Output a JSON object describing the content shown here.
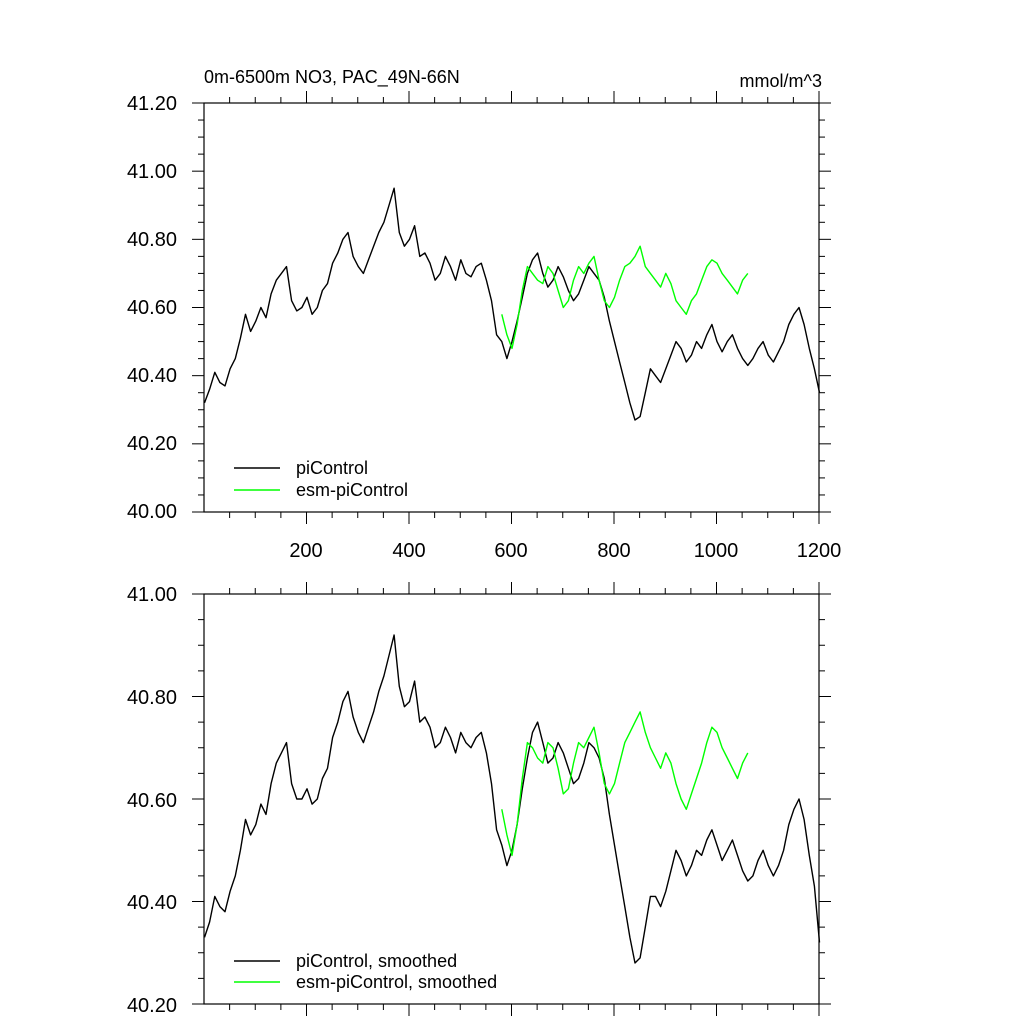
{
  "chart_data": [
    {
      "type": "line",
      "title": "0m-6500m NO3, PAC_49N-66N",
      "units": "mmol/m^3",
      "xlim": [
        0,
        1200
      ],
      "ylim": [
        40.0,
        41.2
      ],
      "xticks": [
        200,
        400,
        600,
        800,
        1000,
        1200
      ],
      "xtick_labels": [
        "200",
        "400",
        "600",
        "800",
        "1000",
        "1200"
      ],
      "yticks": [
        40.0,
        40.2,
        40.4,
        40.6,
        40.8,
        41.0,
        41.2
      ],
      "ytick_labels": [
        "40.00",
        "40.20",
        "40.40",
        "40.60",
        "40.80",
        "41.00",
        "41.20"
      ],
      "legend": {
        "position": "bottom-left",
        "entries": [
          "piControl",
          "esm-piControl"
        ]
      },
      "series": [
        {
          "name": "piControl",
          "color": "#000000",
          "x_start": 1,
          "x_step": 10,
          "values": [
            40.32,
            40.36,
            40.41,
            40.38,
            40.37,
            40.42,
            40.45,
            40.51,
            40.58,
            40.53,
            40.56,
            40.6,
            40.57,
            40.64,
            40.68,
            40.7,
            40.72,
            40.62,
            40.59,
            40.6,
            40.63,
            40.58,
            40.6,
            40.65,
            40.67,
            40.73,
            40.76,
            40.8,
            40.82,
            40.75,
            40.72,
            40.7,
            40.74,
            40.78,
            40.82,
            40.85,
            40.9,
            40.95,
            40.82,
            40.78,
            40.8,
            40.84,
            40.75,
            40.76,
            40.73,
            40.68,
            40.7,
            40.75,
            40.72,
            40.68,
            40.74,
            40.7,
            40.69,
            40.72,
            40.73,
            40.68,
            40.62,
            40.52,
            40.5,
            40.45,
            40.5,
            40.56,
            40.63,
            40.7,
            40.74,
            40.76,
            40.7,
            40.66,
            40.68,
            40.72,
            40.69,
            40.65,
            40.62,
            40.64,
            40.68,
            40.72,
            40.7,
            40.68,
            40.63,
            40.56,
            40.5,
            40.44,
            40.38,
            40.32,
            40.27,
            40.28,
            40.35,
            40.42,
            40.4,
            40.38,
            40.42,
            40.46,
            40.5,
            40.48,
            40.44,
            40.46,
            40.5,
            40.48,
            40.52,
            40.55,
            40.5,
            40.47,
            40.5,
            40.52,
            40.48,
            40.45,
            40.43,
            40.45,
            40.48,
            40.5,
            40.46,
            40.44,
            40.47,
            40.5,
            40.55,
            40.58,
            40.6,
            40.55,
            40.48,
            40.42,
            40.35
          ]
        },
        {
          "name": "esm-piControl",
          "color": "#00ff00",
          "x_start": 581,
          "x_step": 10,
          "values": [
            40.58,
            40.52,
            40.48,
            40.55,
            40.65,
            40.72,
            40.7,
            40.68,
            40.67,
            40.72,
            40.7,
            40.65,
            40.6,
            40.62,
            40.68,
            40.72,
            40.7,
            40.73,
            40.75,
            40.68,
            40.62,
            40.6,
            40.63,
            40.68,
            40.72,
            40.73,
            40.75,
            40.78,
            40.72,
            40.7,
            40.68,
            40.66,
            40.7,
            40.67,
            40.62,
            40.6,
            40.58,
            40.62,
            40.64,
            40.68,
            40.72,
            40.74,
            40.73,
            40.7,
            40.68,
            40.66,
            40.64,
            40.68,
            40.7
          ]
        }
      ]
    },
    {
      "type": "line",
      "title": "",
      "xlim": [
        0,
        1200
      ],
      "ylim": [
        40.2,
        41.0
      ],
      "xticks": [
        200,
        400,
        600,
        800,
        1000,
        1200
      ],
      "yticks": [
        40.2,
        40.4,
        40.6,
        40.8,
        41.0
      ],
      "ytick_labels": [
        "40.20",
        "40.40",
        "40.60",
        "40.80",
        "41.00"
      ],
      "legend": {
        "position": "bottom-left",
        "entries": [
          "piControl, smoothed",
          "esm-piControl, smoothed"
        ]
      },
      "series": [
        {
          "name": "piControl, smoothed",
          "color": "#000000",
          "x_start": 1,
          "x_step": 10,
          "values": [
            40.33,
            40.36,
            40.41,
            40.39,
            40.38,
            40.42,
            40.45,
            40.5,
            40.56,
            40.53,
            40.55,
            40.59,
            40.57,
            40.63,
            40.67,
            40.69,
            40.71,
            40.63,
            40.6,
            40.6,
            40.62,
            40.59,
            40.6,
            40.64,
            40.66,
            40.72,
            40.75,
            40.79,
            40.81,
            40.76,
            40.73,
            40.71,
            40.74,
            40.77,
            40.81,
            40.84,
            40.88,
            40.92,
            40.82,
            40.78,
            40.79,
            40.83,
            40.75,
            40.76,
            40.74,
            40.7,
            40.71,
            40.74,
            40.72,
            40.69,
            40.73,
            40.71,
            40.7,
            40.72,
            40.73,
            40.69,
            40.63,
            40.54,
            40.51,
            40.47,
            40.5,
            40.55,
            40.62,
            40.68,
            40.73,
            40.75,
            40.71,
            40.67,
            40.68,
            40.71,
            40.69,
            40.66,
            40.63,
            40.64,
            40.67,
            40.71,
            40.7,
            40.68,
            40.64,
            40.57,
            40.51,
            40.45,
            40.39,
            40.33,
            40.28,
            40.29,
            40.35,
            40.41,
            40.41,
            40.39,
            40.42,
            40.46,
            40.5,
            40.48,
            40.45,
            40.47,
            40.5,
            40.49,
            40.52,
            40.54,
            40.51,
            40.48,
            40.5,
            40.52,
            40.49,
            40.46,
            40.44,
            40.45,
            40.48,
            40.5,
            40.47,
            40.45,
            40.47,
            40.5,
            40.55,
            40.58,
            40.6,
            40.56,
            40.49,
            40.43,
            40.32
          ]
        },
        {
          "name": "esm-piControl, smoothed",
          "color": "#00ff00",
          "x_start": 581,
          "x_step": 10,
          "values": [
            40.58,
            40.53,
            40.49,
            40.55,
            40.64,
            40.71,
            40.7,
            40.68,
            40.67,
            40.71,
            40.7,
            40.66,
            40.61,
            40.62,
            40.67,
            40.71,
            40.7,
            40.72,
            40.74,
            40.69,
            40.63,
            40.61,
            40.63,
            40.67,
            40.71,
            40.73,
            40.75,
            40.77,
            40.73,
            40.7,
            40.68,
            40.66,
            40.69,
            40.67,
            40.63,
            40.6,
            40.58,
            40.61,
            40.64,
            40.67,
            40.71,
            40.74,
            40.73,
            40.7,
            40.68,
            40.66,
            40.64,
            40.67,
            40.69
          ]
        }
      ]
    }
  ]
}
